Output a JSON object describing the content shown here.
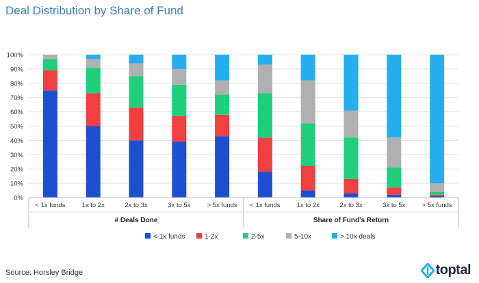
{
  "title": "Deal Distribution by Share of Fund",
  "source_text": "Source: Horsley Bridge",
  "brand": {
    "name": "toptal",
    "color": "#1f2a44"
  },
  "chart_data": {
    "type": "bar",
    "stacked": true,
    "title": "Deal Distribution by Share of Fund",
    "ylim": [
      0,
      100
    ],
    "yticks": [
      "0%",
      "10%",
      "20%",
      "30%",
      "40%",
      "50%",
      "60%",
      "70%",
      "80%",
      "90%",
      "100%"
    ],
    "groups": [
      {
        "name": "# Deals Done",
        "categories": [
          "< 1x funds",
          "1x to 2x",
          "2x to 3x",
          "3x to 5x",
          "> 5x funds"
        ]
      },
      {
        "name": "Share of Fund's Return",
        "categories": [
          "< 1x funds",
          "1x to 2x",
          "2x to 3x",
          "3x to 5x",
          "> 5x funds"
        ]
      }
    ],
    "series": [
      {
        "name": "< 1x funds",
        "color": "#1f4fd1",
        "values": [
          75,
          50,
          40,
          39,
          43,
          18,
          5,
          3,
          2,
          1
        ]
      },
      {
        "name": "1-2x",
        "color": "#ef3f3f",
        "values": [
          14,
          23,
          23,
          18,
          15,
          24,
          17,
          10,
          5,
          1
        ]
      },
      {
        "name": "2-5x",
        "color": "#1ecf7b",
        "values": [
          8,
          18,
          22,
          22,
          14,
          31,
          30,
          29,
          14,
          2
        ]
      },
      {
        "name": "5-10x",
        "color": "#b0b0b0",
        "values": [
          3,
          6,
          9,
          11,
          10,
          20,
          30,
          19,
          21,
          6
        ]
      },
      {
        "name": "> 10x deals",
        "color": "#25aef0",
        "values": [
          0,
          3,
          6,
          10,
          18,
          7,
          18,
          39,
          58,
          90
        ]
      }
    ],
    "grid": true,
    "legend_position": "bottom"
  }
}
